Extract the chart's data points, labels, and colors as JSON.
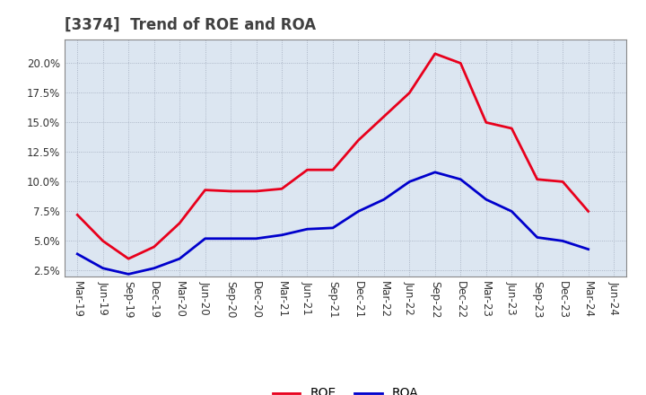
{
  "title": "[3374]  Trend of ROE and ROA",
  "x_labels": [
    "Mar-19",
    "Jun-19",
    "Sep-19",
    "Dec-19",
    "Mar-20",
    "Jun-20",
    "Sep-20",
    "Dec-20",
    "Mar-21",
    "Jun-21",
    "Sep-21",
    "Dec-21",
    "Mar-22",
    "Jun-22",
    "Sep-22",
    "Dec-22",
    "Mar-23",
    "Jun-23",
    "Sep-23",
    "Dec-23",
    "Mar-24",
    "Jun-24"
  ],
  "roe": [
    7.2,
    5.0,
    3.5,
    4.5,
    6.5,
    9.3,
    9.2,
    9.2,
    9.4,
    11.0,
    11.0,
    13.5,
    15.5,
    17.5,
    20.8,
    20.0,
    15.0,
    14.5,
    10.2,
    10.0,
    7.5,
    null
  ],
  "roa": [
    3.9,
    2.7,
    2.2,
    2.7,
    3.5,
    5.2,
    5.2,
    5.2,
    5.5,
    6.0,
    6.1,
    7.5,
    8.5,
    10.0,
    10.8,
    10.2,
    8.5,
    7.5,
    5.3,
    5.0,
    4.3,
    null
  ],
  "roe_color": "#e8001c",
  "roa_color": "#0000cc",
  "ylim": [
    2.0,
    22.0
  ],
  "yticks": [
    2.5,
    5.0,
    7.5,
    10.0,
    12.5,
    15.0,
    17.5,
    20.0
  ],
  "plot_bg_color": "#dce6f1",
  "grid_color": "#a0aabb",
  "line_width": 2.0,
  "title_fontsize": 12,
  "title_color": "#404040",
  "legend_fontsize": 10,
  "tick_fontsize": 8.5
}
